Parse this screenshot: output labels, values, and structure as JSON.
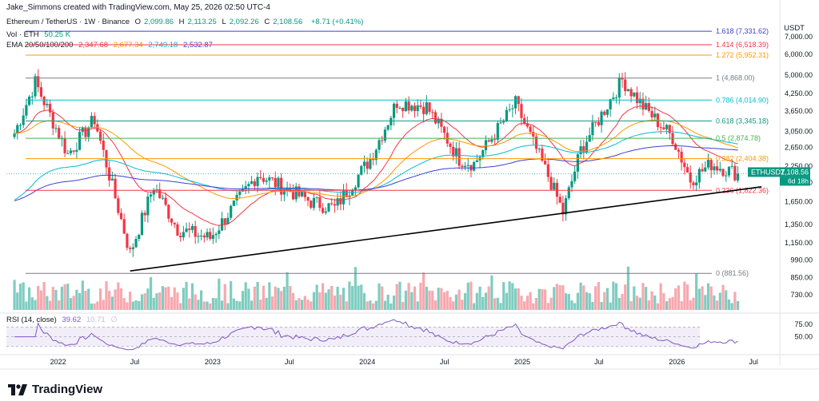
{
  "header": {
    "credit": "Jake_Simmons created with TradingView.com, May 25, 2026 02:50 UTC-4",
    "title": "Ethereum / TetherUS · 1W · Binance",
    "ohlc": [
      {
        "label": "O",
        "value": "2,099.86"
      },
      {
        "label": "H",
        "value": "2,113.25"
      },
      {
        "label": "L",
        "value": "2,092.26"
      },
      {
        "label": "C",
        "value": "2,108.56"
      }
    ],
    "change": "+8.71 (+0.41%)",
    "vol_label": "Vol · ETH",
    "vol_value": "50.25 K",
    "ema_label": "EMA 20/50/100/200",
    "ema_values": [
      "2,347.68",
      "2,677.34",
      "2,749.18",
      "2,532.87"
    ],
    "rsi_label": "RSI (14, close)",
    "rsi_value": "39.62",
    "rsi_faded": "10.71",
    "rsi_empty": "∅"
  },
  "axis": {
    "currency": "USDT",
    "ticks": [
      "7,000.00",
      "6,000.00",
      "5,000.00",
      "4,250.00",
      "3,650.00",
      "3,050.00",
      "2,650.00",
      "2,250.00",
      "1,950.00",
      "1,650.00",
      "1,350.00",
      "1,150.00",
      "990.00",
      "850.00",
      "730.00"
    ],
    "tick_values": [
      7000,
      6000,
      5000,
      4250,
      3650,
      3050,
      2650,
      2250,
      1950,
      1650,
      1350,
      1150,
      990,
      850,
      730
    ],
    "rsi_ticks": [
      "75.00",
      "50.00"
    ],
    "price_tag": {
      "symbol": "ETHUSDT",
      "price": "2,108.56",
      "countdown": "6d 18h"
    },
    "time_labels": [
      "2022",
      "Jul",
      "2023",
      "Jul",
      "2024",
      "Jul",
      "2025",
      "Jul",
      "2026",
      "Jul"
    ]
  },
  "colors": {
    "up": "#089981",
    "down": "#f23645",
    "vol_up": "#7fccc0",
    "vol_down": "#f7a8ae",
    "ema20": "#f23645",
    "ema50": "#ff9800",
    "ema100": "#00bcd4",
    "ema200": "#3f3fd0",
    "rsi": "#7e57c2",
    "trendline": "#000000"
  },
  "chart_data": {
    "type": "candlestick",
    "symbol": "ETHUSDT",
    "interval": "1W",
    "exchange": "Binance",
    "y_scale": "log",
    "ylim": [
      640,
      8500
    ],
    "x_range": [
      "2021-09",
      "2026-09"
    ],
    "fib_levels": [
      {
        "label": "1.618 (7,331.62)",
        "value": 7331.62,
        "color": "#3f3fd0"
      },
      {
        "label": "1.414 (6,518.39)",
        "value": 6518.39,
        "color": "#f23645"
      },
      {
        "label": "1.272 (5,952.31)",
        "value": 5952.31,
        "color": "#ff9800"
      },
      {
        "label": "1 (4,868.00)",
        "value": 4868.0,
        "color": "#787b86"
      },
      {
        "label": "0.786 (4,014.90)",
        "value": 4014.9,
        "color": "#00bcd4"
      },
      {
        "label": "0.618 (3,345.18)",
        "value": 3345.18,
        "color": "#089981"
      },
      {
        "label": "0.5 (2,874.78)",
        "value": 2874.78,
        "color": "#4caf50"
      },
      {
        "label": "0.382 (2,404.38)",
        "value": 2404.38,
        "color": "#ff9800"
      },
      {
        "label": "0.236 (1,822.36)",
        "value": 1822.36,
        "color": "#f23645"
      },
      {
        "label": "0 (881.56)",
        "value": 881.56,
        "color": "#787b86"
      }
    ],
    "trendline": [
      {
        "date": "2022-06-20",
        "price": 900
      },
      {
        "date": "2026-07-20",
        "price": 1880
      }
    ],
    "close_anchors": [
      {
        "date": "2021-09-20",
        "close": 3000
      },
      {
        "date": "2021-11-08",
        "close": 4700
      },
      {
        "date": "2022-01-24",
        "close": 2500
      },
      {
        "date": "2022-03-28",
        "close": 3400
      },
      {
        "date": "2022-06-20",
        "close": 1050
      },
      {
        "date": "2022-08-15",
        "close": 1900
      },
      {
        "date": "2022-10-10",
        "close": 1300
      },
      {
        "date": "2022-12-26",
        "close": 1200
      },
      {
        "date": "2023-04-17",
        "close": 2100
      },
      {
        "date": "2023-08-21",
        "close": 1650
      },
      {
        "date": "2023-10-16",
        "close": 1560
      },
      {
        "date": "2024-01-08",
        "close": 2400
      },
      {
        "date": "2024-03-11",
        "close": 3950
      },
      {
        "date": "2024-05-20",
        "close": 3800
      },
      {
        "date": "2024-08-05",
        "close": 2400
      },
      {
        "date": "2024-09-09",
        "close": 2300
      },
      {
        "date": "2024-12-16",
        "close": 3900
      },
      {
        "date": "2025-03-10",
        "close": 1950
      },
      {
        "date": "2025-04-07",
        "close": 1500
      },
      {
        "date": "2025-05-19",
        "close": 2600
      },
      {
        "date": "2025-07-14",
        "close": 3700
      },
      {
        "date": "2025-08-25",
        "close": 4800
      },
      {
        "date": "2025-10-13",
        "close": 3800
      },
      {
        "date": "2025-12-22",
        "close": 2900
      },
      {
        "date": "2026-02-02",
        "close": 2000
      },
      {
        "date": "2026-03-23",
        "close": 2300
      },
      {
        "date": "2026-05-25",
        "close": 2108.56
      }
    ],
    "last_close": 2108.56,
    "rsi": {
      "period": 14,
      "value": 39.62,
      "bands": [
        70,
        50,
        30
      ]
    }
  }
}
